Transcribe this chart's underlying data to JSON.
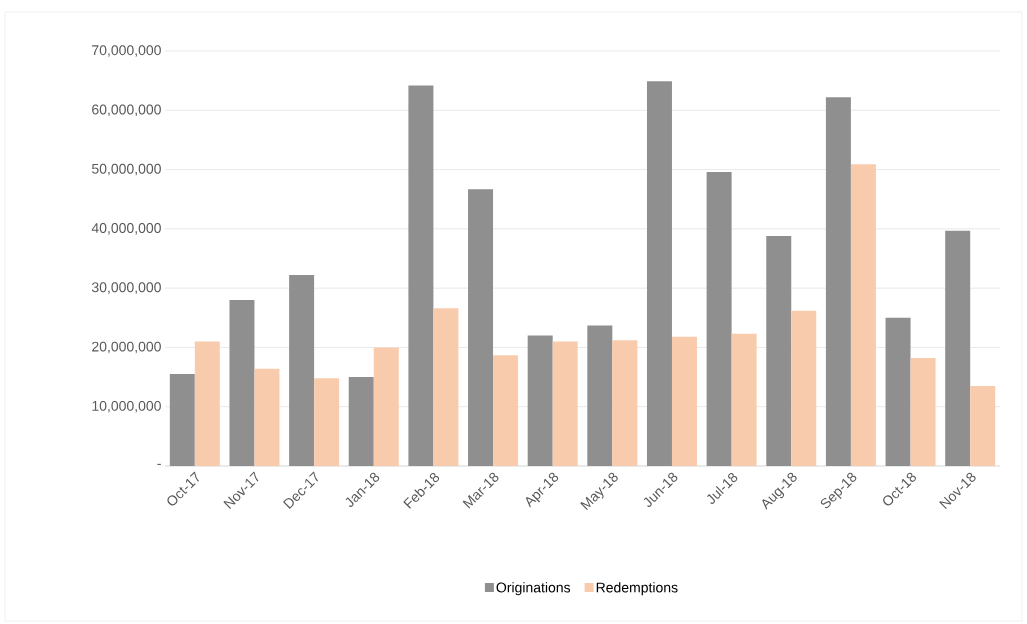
{
  "chart_data": {
    "type": "bar",
    "categories": [
      "Oct-17",
      "Nov-17",
      "Dec-17",
      "Jan-18",
      "Feb-18",
      "Mar-18",
      "Apr-18",
      "May-18",
      "Jun-18",
      "Jul-18",
      "Aug-18",
      "Sep-18",
      "Oct-18",
      "Nov-18"
    ],
    "series": [
      {
        "name": "Originations",
        "color": "#8f8f8f",
        "values": [
          15500000,
          28000000,
          32200000,
          15000000,
          64200000,
          46700000,
          22000000,
          23700000,
          64900000,
          49600000,
          38800000,
          62200000,
          25000000,
          39700000
        ]
      },
      {
        "name": "Redemptions",
        "color": "#f8cbad",
        "values": [
          21000000,
          16400000,
          14800000,
          20000000,
          26600000,
          18700000,
          21000000,
          21200000,
          21800000,
          22300000,
          26200000,
          50900000,
          18200000,
          13500000
        ]
      }
    ],
    "ylim": [
      0,
      70000000
    ],
    "yticks": [
      {
        "value": 0,
        "label": "-"
      },
      {
        "value": 10000000,
        "label": "10,000,000"
      },
      {
        "value": 20000000,
        "label": "20,000,000"
      },
      {
        "value": 30000000,
        "label": "30,000,000"
      },
      {
        "value": 40000000,
        "label": "40,000,000"
      },
      {
        "value": 50000000,
        "label": "50,000,000"
      },
      {
        "value": 60000000,
        "label": "60,000,000"
      },
      {
        "value": 70000000,
        "label": "70,000,000"
      }
    ],
    "grid": "y",
    "legend": "bottom"
  }
}
